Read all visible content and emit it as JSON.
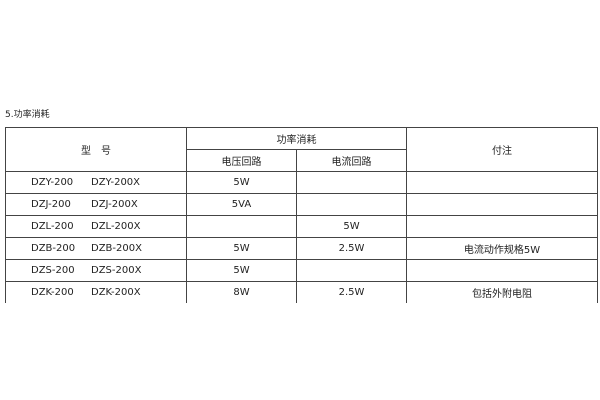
{
  "section_title": "5.功率消耗",
  "table": {
    "header": {
      "model": "型　号",
      "power": "功率消耗",
      "voltage_circuit": "电压回路",
      "current_circuit": "电流回路",
      "note": "付注"
    },
    "rows": [
      {
        "model_a": "DZY-200",
        "model_b": "DZY-200X",
        "voltage": "5W",
        "current": "",
        "note": ""
      },
      {
        "model_a": "DZJ-200",
        "model_b": "DZJ-200X",
        "voltage": "5VA",
        "current": "",
        "note": ""
      },
      {
        "model_a": "DZL-200",
        "model_b": "DZL-200X",
        "voltage": "",
        "current": "5W",
        "note": ""
      },
      {
        "model_a": "DZB-200",
        "model_b": "DZB-200X",
        "voltage": "5W",
        "current": "2.5W",
        "note": "电流动作规格5W"
      },
      {
        "model_a": "DZS-200",
        "model_b": "DZS-200X",
        "voltage": "5W",
        "current": "",
        "note": ""
      },
      {
        "model_a": "DZK-200",
        "model_b": "DZK-200X",
        "voltage": "8W",
        "current": "2.5W",
        "note": "包括外附电阻"
      }
    ]
  }
}
